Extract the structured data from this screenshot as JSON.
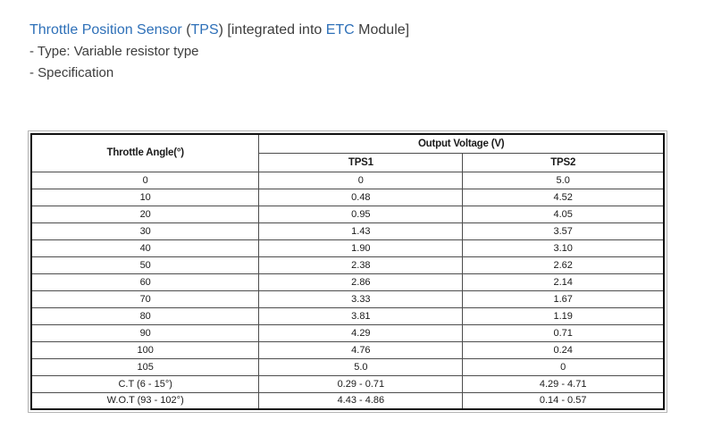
{
  "page": {
    "background": "#ffffff",
    "text_color": "#3d3d3d",
    "link_color": "#2e70b8",
    "table_border_color": "#111111",
    "table_grid_color": "#4d4d4d"
  },
  "header": {
    "title_segments": [
      {
        "text": "Throttle Position Sensor",
        "style": "link"
      },
      {
        "text": " (",
        "style": "plain"
      },
      {
        "text": "TPS",
        "style": "link"
      },
      {
        "text": ") [integrated into ",
        "style": "plain"
      },
      {
        "text": "ETC",
        "style": "link"
      },
      {
        "text": " Module]",
        "style": "plain"
      }
    ],
    "type_line": "- Type: Variable resistor type",
    "spec_line": "- Specification"
  },
  "table": {
    "col1_header": "Throttle Angle(°)",
    "group_header": "Output Voltage (V)",
    "sub_headers": [
      "TPS1",
      "TPS2"
    ],
    "rows": [
      {
        "angle": "0",
        "tps1": "0",
        "tps2": "5.0"
      },
      {
        "angle": "10",
        "tps1": "0.48",
        "tps2": "4.52"
      },
      {
        "angle": "20",
        "tps1": "0.95",
        "tps2": "4.05"
      },
      {
        "angle": "30",
        "tps1": "1.43",
        "tps2": "3.57"
      },
      {
        "angle": "40",
        "tps1": "1.90",
        "tps2": "3.10"
      },
      {
        "angle": "50",
        "tps1": "2.38",
        "tps2": "2.62"
      },
      {
        "angle": "60",
        "tps1": "2.86",
        "tps2": "2.14"
      },
      {
        "angle": "70",
        "tps1": "3.33",
        "tps2": "1.67"
      },
      {
        "angle": "80",
        "tps1": "3.81",
        "tps2": "1.19"
      },
      {
        "angle": "90",
        "tps1": "4.29",
        "tps2": "0.71"
      },
      {
        "angle": "100",
        "tps1": "4.76",
        "tps2": "0.24"
      },
      {
        "angle": "105",
        "tps1": "5.0",
        "tps2": "0"
      },
      {
        "angle": "C.T (6 - 15°)",
        "tps1": "0.29 - 0.71",
        "tps2": "4.29 - 4.71"
      },
      {
        "angle": "W.O.T (93 - 102°)",
        "tps1": "4.43 - 4.86",
        "tps2": "0.14 - 0.57"
      }
    ]
  }
}
